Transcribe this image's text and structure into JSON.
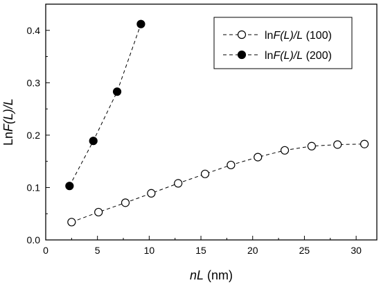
{
  "chart_data": {
    "type": "line",
    "title": "",
    "xlabel": {
      "italic": "nL",
      "rest": " (nm)"
    },
    "ylabel": {
      "prefix": "Ln",
      "italic": "F(L)/L"
    },
    "xlim": [
      0,
      32
    ],
    "ylim": [
      0,
      0.45
    ],
    "x_ticks": [
      0,
      5,
      10,
      15,
      20,
      25,
      30
    ],
    "y_ticks": [
      0.0,
      0.1,
      0.2,
      0.3,
      0.4
    ],
    "x_tick_labels": [
      "0",
      "5",
      "10",
      "15",
      "20",
      "25",
      "30"
    ],
    "y_tick_labels": [
      "0.0",
      "0.1",
      "0.2",
      "0.3",
      "0.4"
    ],
    "grid": false,
    "legend_position": "top-right",
    "series": [
      {
        "name": "lnF(L)/L (100)",
        "legend_parts": {
          "pre": "ln",
          "italic": "F(L)/L",
          "post": " (100)"
        },
        "marker": "open-circle",
        "line_style": "dashed",
        "color": "#000000",
        "x": [
          2.5,
          5.1,
          7.7,
          10.2,
          12.8,
          15.4,
          17.9,
          20.5,
          23.1,
          25.7,
          28.2,
          30.8
        ],
        "y": [
          0.034,
          0.053,
          0.071,
          0.089,
          0.108,
          0.126,
          0.143,
          0.158,
          0.171,
          0.179,
          0.182,
          0.183
        ]
      },
      {
        "name": "lnF(L)/L (200)",
        "legend_parts": {
          "pre": "ln",
          "italic": "F(L)/L",
          "post": " (200)"
        },
        "marker": "filled-circle",
        "line_style": "dashed",
        "color": "#000000",
        "x": [
          2.3,
          4.6,
          6.9,
          9.2
        ],
        "y": [
          0.103,
          0.189,
          0.283,
          0.412
        ]
      }
    ]
  }
}
